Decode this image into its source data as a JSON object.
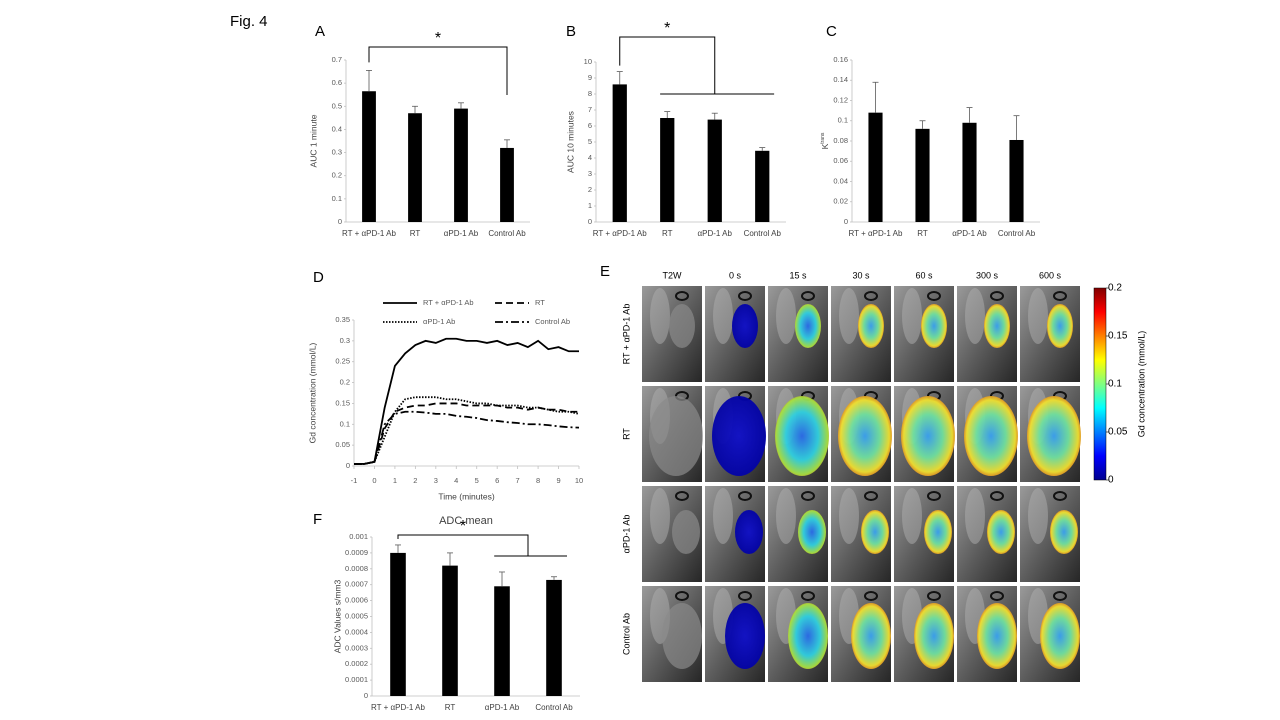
{
  "figure_label": "Fig. 4",
  "chart_data": [
    {
      "type": "bar",
      "panel": "A",
      "ylabel": "AUC 1 minute",
      "categories": [
        "RT + αPD-1 Ab",
        "RT",
        "αPD-1 Ab",
        "Control Ab"
      ],
      "values": [
        0.565,
        0.47,
        0.49,
        0.32
      ],
      "errors": [
        0.09,
        0.03,
        0.025,
        0.035
      ],
      "color": "#000000",
      "ylim": [
        0,
        0.7
      ],
      "yticks": [
        0,
        0.1,
        0.2,
        0.3,
        0.4,
        0.5,
        0.6,
        0.7
      ],
      "annotations": [
        "*"
      ]
    },
    {
      "type": "bar",
      "panel": "B",
      "ylabel": "AUC 10 minutes",
      "categories": [
        "RT + αPD-1 Ab",
        "RT",
        "αPD-1 Ab",
        "Control Ab"
      ],
      "values": [
        8.6,
        6.5,
        6.4,
        4.45
      ],
      "errors": [
        0.8,
        0.4,
        0.4,
        0.2
      ],
      "color": "#000000",
      "ylim": [
        0,
        10
      ],
      "yticks": [
        0,
        1,
        2,
        3,
        4,
        5,
        6,
        7,
        8,
        9,
        10
      ],
      "annotations": [
        "*"
      ]
    },
    {
      "type": "bar",
      "panel": "C",
      "ylabel": "K",
      "ylabel_superscript": "trans",
      "categories": [
        "RT + αPD-1 Ab",
        "RT",
        "αPD-1 Ab",
        "Control Ab"
      ],
      "values": [
        0.108,
        0.092,
        0.098,
        0.081
      ],
      "errors": [
        0.03,
        0.008,
        0.015,
        0.024
      ],
      "color": "#000000",
      "ylim": [
        0,
        0.16
      ],
      "yticks": [
        0,
        0.02,
        0.04,
        0.06,
        0.08,
        0.1,
        0.12,
        0.14,
        0.16
      ]
    },
    {
      "type": "line",
      "panel": "D",
      "xlabel": "Time (minutes)",
      "ylabel": "Gd concentration (mmol/L)",
      "x": [
        -1,
        -0.5,
        0,
        0.5,
        1,
        1.5,
        2,
        2.5,
        3,
        3.5,
        4,
        4.5,
        5,
        5.5,
        6,
        6.5,
        7,
        7.5,
        8,
        8.5,
        9,
        9.5,
        10
      ],
      "series": [
        {
          "name": "RT + αPD-1 Ab",
          "color": "#000000",
          "dash": "solid",
          "values": [
            0.005,
            0.005,
            0.01,
            0.14,
            0.24,
            0.27,
            0.29,
            0.3,
            0.295,
            0.305,
            0.305,
            0.3,
            0.3,
            0.295,
            0.3,
            0.29,
            0.295,
            0.285,
            0.3,
            0.28,
            0.285,
            0.275,
            0.275
          ]
        },
        {
          "name": "RT",
          "color": "#000000",
          "dash": "dash",
          "values": [
            0.005,
            0.005,
            0.01,
            0.09,
            0.13,
            0.14,
            0.145,
            0.145,
            0.15,
            0.15,
            0.15,
            0.145,
            0.145,
            0.145,
            0.145,
            0.14,
            0.14,
            0.135,
            0.14,
            0.135,
            0.135,
            0.13,
            0.13
          ]
        },
        {
          "name": "αPD-1 Ab",
          "color": "#000000",
          "dash": "dot",
          "values": [
            0.005,
            0.005,
            0.01,
            0.07,
            0.13,
            0.16,
            0.165,
            0.165,
            0.165,
            0.16,
            0.16,
            0.155,
            0.15,
            0.15,
            0.145,
            0.145,
            0.145,
            0.14,
            0.14,
            0.135,
            0.13,
            0.13,
            0.125
          ]
        },
        {
          "name": "Control Ab",
          "color": "#000000",
          "dash": "dashdot",
          "values": [
            0.005,
            0.005,
            0.01,
            0.1,
            0.125,
            0.13,
            0.13,
            0.128,
            0.125,
            0.125,
            0.12,
            0.118,
            0.115,
            0.11,
            0.108,
            0.105,
            0.103,
            0.1,
            0.1,
            0.098,
            0.095,
            0.093,
            0.092
          ]
        }
      ],
      "xlim": [
        -1,
        10
      ],
      "xticks": [
        -1,
        0,
        1,
        2,
        3,
        4,
        5,
        6,
        7,
        8,
        9,
        10
      ],
      "ylim": [
        0,
        0.35
      ],
      "yticks": [
        0,
        0.05,
        0.1,
        0.15,
        0.2,
        0.25,
        0.3,
        0.35
      ]
    },
    {
      "type": "bar",
      "panel": "F",
      "title": "ADC mean",
      "ylabel": "ADC Values s/mm3",
      "categories": [
        "RT + αPD-1 Ab",
        "RT",
        "αPD-1 Ab",
        "Control Ab"
      ],
      "values": [
        0.0009,
        0.00082,
        0.00069,
        0.00073
      ],
      "errors": [
        5e-05,
        8e-05,
        9e-05,
        2e-05
      ],
      "color": "#000000",
      "ylim": [
        0,
        0.001
      ],
      "yticks": [
        0,
        0.0001,
        0.0002,
        0.0003,
        0.0004,
        0.0005,
        0.0006,
        0.0007,
        0.0008,
        0.0009,
        0.001
      ],
      "annotations": [
        "*"
      ]
    }
  ],
  "panel_e": {
    "panel": "E",
    "columns": [
      "T2W",
      "0 s",
      "15 s",
      "30 s",
      "60 s",
      "300 s",
      "600 s"
    ],
    "rows": [
      "RT + αPD-1 Ab",
      "RT",
      "αPD-1 Ab",
      "Control Ab"
    ],
    "colorbar": {
      "label": "Gd concentration (mmol/L)",
      "lim": [
        0,
        0.2
      ],
      "ticks": [
        0,
        0.05,
        0.1,
        0.15,
        0.2
      ]
    }
  }
}
